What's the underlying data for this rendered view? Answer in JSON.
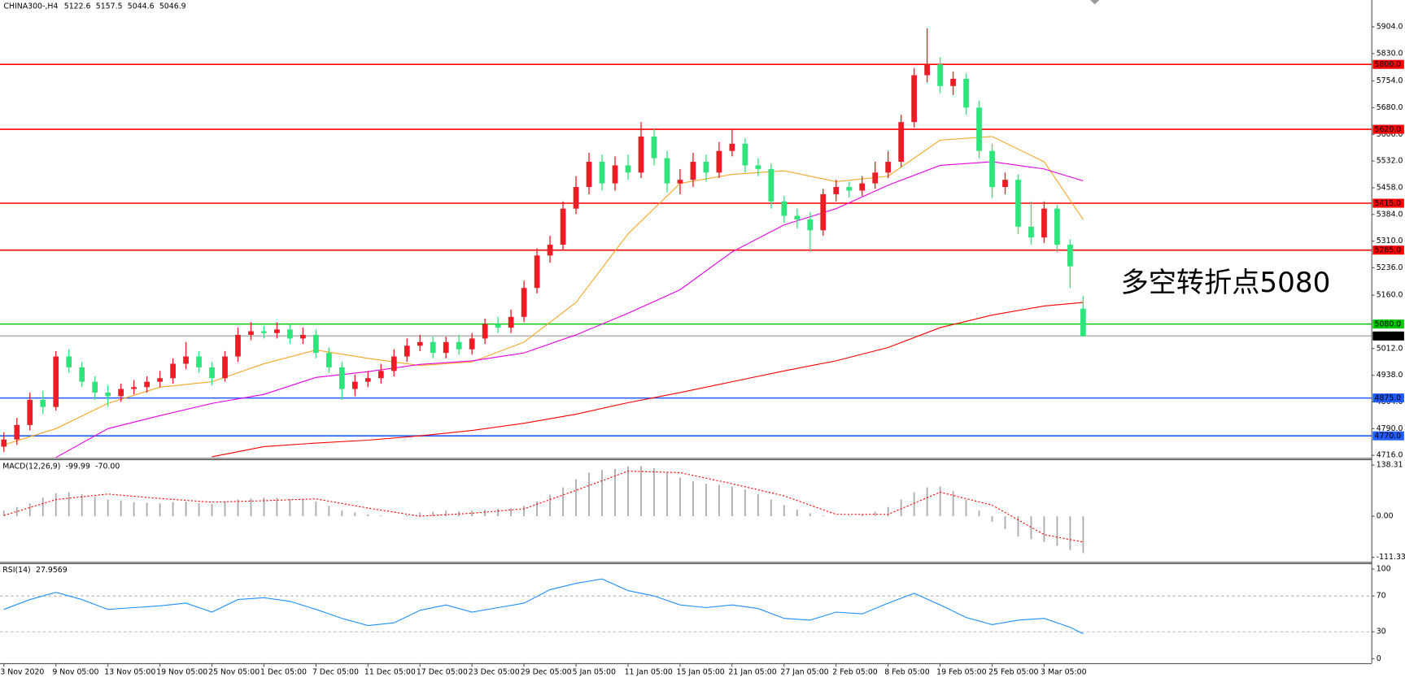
{
  "chart_data": [
    {
      "type": "candlestick",
      "title": "CHINA300-,H4",
      "xlim": [
        -0.3,
        105.2
      ],
      "xticks": [
        {
          "value": 0,
          "label": "3 Nov 2020"
        },
        {
          "value": 4,
          "label": "9 Nov 05:00"
        },
        {
          "value": 8,
          "label": "13 Nov 05:00"
        },
        {
          "value": 12,
          "label": "19 Nov 05:00"
        },
        {
          "value": 16,
          "label": "25 Nov 05:00"
        },
        {
          "value": 20,
          "label": "1 Dec 05:00"
        },
        {
          "value": 24,
          "label": "7 Dec 05:00"
        },
        {
          "value": 28,
          "label": "11 Dec 05:00"
        },
        {
          "value": 32,
          "label": "17 Dec 05:00"
        },
        {
          "value": 36,
          "label": "23 Dec 05:00"
        },
        {
          "value": 40,
          "label": "29 Dec 05:00"
        },
        {
          "value": 44,
          "label": "5 Jan 05:00"
        },
        {
          "value": 48,
          "label": "11 Jan 05:00"
        },
        {
          "value": 52,
          "label": "15 Jan 05:00"
        },
        {
          "value": 56,
          "label": "21 Jan 05:00"
        },
        {
          "value": 60,
          "label": "27 Jan 05:00"
        },
        {
          "value": 64,
          "label": "2 Feb 05:00"
        },
        {
          "value": 68,
          "label": "8 Feb 05:00"
        },
        {
          "value": 72,
          "label": "19 Feb 05:00"
        },
        {
          "value": 76,
          "label": "25 Feb 05:00"
        },
        {
          "value": 80,
          "label": "3 Mar 05:00"
        }
      ],
      "ylim": [
        4708.7,
        5948.7
      ],
      "yticks": [
        {
          "value": 5904,
          "label": "5904.0"
        },
        {
          "value": 5830,
          "label": "5830.0"
        },
        {
          "value": 5754,
          "label": "5754.0"
        },
        {
          "value": 5680,
          "label": "5680.0"
        },
        {
          "value": 5606,
          "label": "5606.0"
        },
        {
          "value": 5532,
          "label": "5532.0"
        },
        {
          "value": 5458,
          "label": "5458.0"
        },
        {
          "value": 5384,
          "label": "5384.0"
        },
        {
          "value": 5310,
          "label": "5310.0"
        },
        {
          "value": 5236,
          "label": "5236.0"
        },
        {
          "value": 5160,
          "label": "5160.0"
        },
        {
          "value": 5012,
          "label": "5012.0"
        },
        {
          "value": 4938,
          "label": "4938.0"
        },
        {
          "value": 4864,
          "label": "4864.0"
        },
        {
          "value": 4790,
          "label": "4790.0"
        },
        {
          "value": 4716,
          "label": "4716.0"
        }
      ],
      "open": [
        4740,
        4760,
        4800,
        4870,
        4850,
        4990,
        4960,
        4920,
        4890,
        4880,
        4900,
        4905,
        4920,
        4930,
        4970,
        4990,
        4960,
        4930,
        4990,
        5050,
        5060,
        5055,
        5065,
        5040,
        5050,
        5000,
        4960,
        4900,
        4920,
        4930,
        4950,
        4990,
        5020,
        5030,
        5000,
        5030,
        5010,
        5040,
        5080,
        5070,
        5100,
        5180,
        5270,
        5300,
        5400,
        5460,
        5530,
        5470,
        5520,
        5500,
        5600,
        5540,
        5470,
        5480,
        5530,
        5500,
        5560,
        5580,
        5520,
        5510,
        5420,
        5380,
        5370,
        5340,
        5440,
        5460,
        5450,
        5470,
        5500,
        5530,
        5640,
        5770,
        5800,
        5740,
        5760,
        5680,
        5560,
        5460,
        5480,
        5350,
        5320,
        5400,
        5300,
        5122.6
      ],
      "high": [
        4780,
        4820,
        4890,
        4895,
        5005,
        5010,
        4975,
        4935,
        4910,
        4915,
        4925,
        4935,
        4950,
        4985,
        5030,
        5005,
        4975,
        5005,
        5070,
        5085,
        5075,
        5085,
        5080,
        5070,
        5065,
        5015,
        4975,
        4940,
        4950,
        4970,
        5010,
        5040,
        5050,
        5045,
        5045,
        5050,
        5055,
        5095,
        5100,
        5120,
        5200,
        5290,
        5325,
        5420,
        5490,
        5555,
        5550,
        5545,
        5550,
        5640,
        5620,
        5560,
        5510,
        5555,
        5550,
        5585,
        5620,
        5595,
        5540,
        5525,
        5435,
        5400,
        5390,
        5455,
        5480,
        5475,
        5490,
        5530,
        5560,
        5660,
        5790,
        5900,
        5820,
        5780,
        5775,
        5700,
        5580,
        5500,
        5495,
        5420,
        5420,
        5410,
        5315,
        5157.5
      ],
      "low": [
        4725,
        4745,
        4785,
        4830,
        4840,
        4945,
        4905,
        4870,
        4850,
        4865,
        4885,
        4890,
        4905,
        4915,
        4955,
        4945,
        4910,
        4920,
        4975,
        5035,
        5040,
        5040,
        5025,
        5025,
        4985,
        4945,
        4870,
        4880,
        4905,
        4915,
        4935,
        4975,
        5005,
        4985,
        4985,
        4995,
        4995,
        5025,
        5055,
        5055,
        5085,
        5165,
        5250,
        5285,
        5385,
        5440,
        5450,
        5450,
        5480,
        5485,
        5520,
        5445,
        5440,
        5460,
        5475,
        5485,
        5545,
        5500,
        5490,
        5400,
        5360,
        5345,
        5280,
        5325,
        5420,
        5430,
        5435,
        5455,
        5485,
        5515,
        5625,
        5750,
        5720,
        5715,
        5660,
        5540,
        5430,
        5440,
        5330,
        5300,
        5305,
        5280,
        5180,
        5044.6
      ],
      "close": [
        4760,
        4800,
        4870,
        4850,
        4990,
        4960,
        4920,
        4890,
        4880,
        4900,
        4905,
        4920,
        4930,
        4970,
        4990,
        4960,
        4930,
        4990,
        5050,
        5060,
        5055,
        5065,
        5040,
        5050,
        5000,
        4960,
        4900,
        4920,
        4930,
        4950,
        4990,
        5020,
        5030,
        5000,
        5030,
        5010,
        5040,
        5080,
        5070,
        5100,
        5180,
        5270,
        5300,
        5400,
        5460,
        5530,
        5470,
        5520,
        5500,
        5600,
        5540,
        5470,
        5480,
        5530,
        5500,
        5560,
        5580,
        5520,
        5510,
        5420,
        5380,
        5370,
        5340,
        5440,
        5460,
        5450,
        5470,
        5500,
        5530,
        5640,
        5770,
        5800,
        5740,
        5760,
        5680,
        5560,
        5460,
        5480,
        5350,
        5320,
        5400,
        5300,
        5240,
        5046.9
      ],
      "up_color": "#ee1c25",
      "down_color": "#2ee57c",
      "moving_averages": [
        {
          "color": "#f5a623",
          "x": [
            0,
            4,
            8,
            12,
            16,
            20,
            24,
            28,
            32,
            36,
            40,
            44,
            48,
            52,
            56,
            60,
            64,
            68,
            72,
            76,
            80,
            83
          ],
          "values": [
            4745,
            4790,
            4860,
            4905,
            4920,
            4970,
            5008,
            4985,
            4965,
            4975,
            5030,
            5140,
            5330,
            5470,
            5495,
            5505,
            5475,
            5490,
            5590,
            5600,
            5530,
            5370
          ]
        },
        {
          "color": "#e600e6",
          "x": [
            4,
            8,
            12,
            16,
            20,
            24,
            28,
            32,
            36,
            40,
            44,
            48,
            52,
            56,
            60,
            64,
            68,
            72,
            76,
            80,
            83
          ],
          "values": [
            4710,
            4790,
            4826,
            4860,
            4885,
            4932,
            4948,
            4968,
            4978,
            5000,
            5050,
            5110,
            5175,
            5280,
            5355,
            5400,
            5465,
            5520,
            5530,
            5510,
            5477
          ]
        },
        {
          "color": "#ff0000",
          "x": [
            16,
            20,
            24,
            28,
            32,
            36,
            40,
            44,
            48,
            52,
            56,
            60,
            64,
            68,
            72,
            76,
            80,
            83
          ],
          "values": [
            4712,
            4740,
            4750,
            4758,
            4770,
            4785,
            4805,
            4830,
            4862,
            4890,
            4920,
            4950,
            4978,
            5015,
            5070,
            5105,
            5130,
            5140
          ]
        }
      ],
      "levels": [
        {
          "value": 5800,
          "label": "5800.0",
          "color": "#ff0000"
        },
        {
          "value": 5620,
          "label": "5620.0",
          "color": "#ff0000"
        },
        {
          "value": 5415,
          "label": "5415.0",
          "color": "#ff0000"
        },
        {
          "value": 5285,
          "label": "5285.0",
          "color": "#ff0000"
        },
        {
          "value": 5080,
          "label": "5080.0",
          "color": "#00c800"
        },
        {
          "value": 4875,
          "label": "4875.0",
          "color": "#1f5bff"
        },
        {
          "value": 4770,
          "label": "4770.0",
          "color": "#1f5bff"
        },
        {
          "value": 5046.9,
          "label": "5046.9",
          "color": "#b4b4b4",
          "box_color": "#000000"
        }
      ],
      "annotation": "多空转折点5080",
      "annotation_color": "#ff0000"
    },
    {
      "type": "bar",
      "title": "MACD(12,26,9)",
      "title_values": [
        "-99.99",
        "-70.00"
      ],
      "xlim": [
        -0.3,
        105.2
      ],
      "ylim": [
        -123.8,
        152.9
      ],
      "yticks": [
        138.31,
        {
          "value": 0,
          "label": "0.00"
        },
        -111.33
      ],
      "color": "#a9a9a9",
      "values": [
        15,
        25,
        35,
        50,
        62,
        65,
        60,
        52,
        45,
        42,
        38,
        36,
        35,
        38,
        40,
        35,
        33,
        40,
        45,
        48,
        50,
        50,
        47,
        45,
        40,
        28,
        15,
        10,
        5,
        2,
        0,
        3,
        10,
        12,
        15,
        13,
        15,
        18,
        20,
        22,
        28,
        40,
        58,
        78,
        100,
        118,
        125,
        128,
        135,
        136,
        130,
        120,
        105,
        95,
        88,
        85,
        80,
        72,
        60,
        45,
        30,
        18,
        8,
        2,
        0,
        2,
        5,
        12,
        25,
        45,
        65,
        78,
        80,
        68,
        45,
        15,
        -15,
        -35,
        -55,
        -62,
        -70,
        -80,
        -92,
        -99.99
      ],
      "signal": {
        "color": "#ff0000",
        "x": [
          0,
          4,
          8,
          12,
          16,
          20,
          24,
          28,
          32,
          36,
          40,
          44,
          48,
          52,
          56,
          60,
          64,
          68,
          72,
          76,
          80,
          83
        ],
        "values": [
          2,
          45,
          60,
          48,
          38,
          42,
          47,
          22,
          0,
          8,
          20,
          70,
          122,
          118,
          88,
          55,
          5,
          5,
          65,
          30,
          -50,
          -70
        ]
      }
    },
    {
      "type": "line",
      "title": "RSI(14)",
      "xlim": [
        -0.3,
        105.2
      ],
      "ylim": [
        -5,
        106
      ],
      "yticks": [
        100,
        70,
        30,
        0
      ],
      "reference_lines": [
        70,
        30
      ],
      "color": "#1e90ff",
      "x": [
        0,
        2,
        4,
        6,
        8,
        10,
        12,
        14,
        16,
        18,
        20,
        22,
        24,
        26,
        28,
        30,
        32,
        34,
        36,
        38,
        40,
        42,
        44,
        46,
        48,
        50,
        52,
        54,
        56,
        58,
        60,
        62,
        64,
        66,
        68,
        70,
        72,
        74,
        76,
        78,
        80,
        82,
        83
      ],
      "values": [
        55,
        66,
        74,
        66,
        55,
        57,
        59,
        62,
        52,
        66,
        68,
        64,
        55,
        45,
        37,
        40,
        54,
        60,
        52,
        57,
        62,
        77,
        84,
        89,
        76,
        70,
        60,
        57,
        60,
        56,
        45,
        43,
        52,
        50,
        62,
        73,
        60,
        46,
        38,
        43,
        45,
        35,
        27.9569
      ]
    }
  ]
}
